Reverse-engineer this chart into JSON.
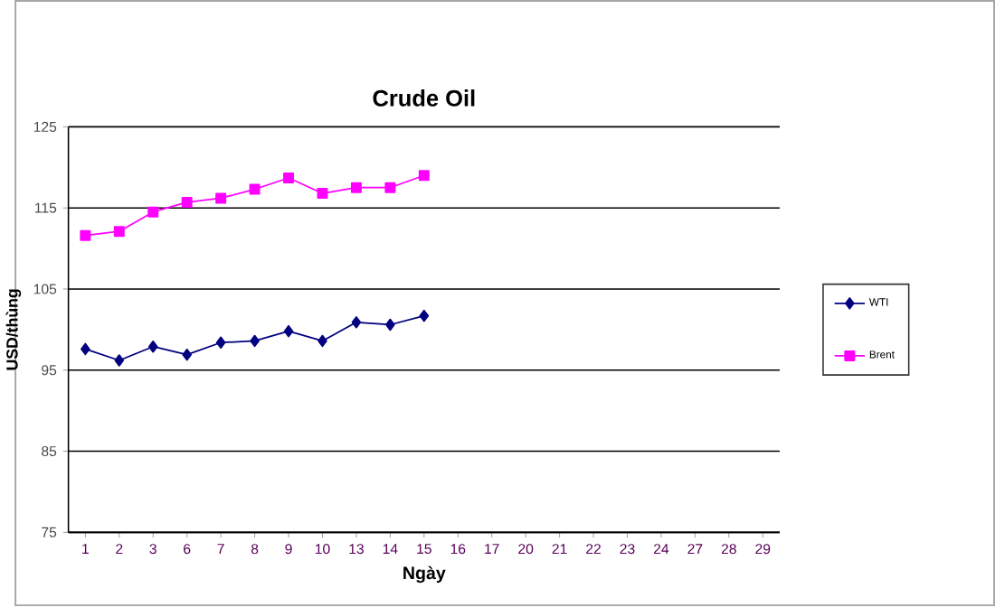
{
  "chart_data": {
    "type": "line",
    "title": "Crude Oil",
    "xlabel": "Ngày",
    "ylabel": "USD/thùng",
    "categories": [
      "1",
      "2",
      "3",
      "6",
      "7",
      "8",
      "9",
      "10",
      "13",
      "14",
      "15",
      "16",
      "17",
      "20",
      "21",
      "22",
      "23",
      "24",
      "27",
      "28",
      "29"
    ],
    "series": [
      {
        "name": "WTI",
        "color": "#000080",
        "marker": "diamond",
        "values": [
          97.6,
          96.2,
          97.9,
          96.9,
          98.4,
          98.6,
          99.8,
          98.6,
          100.9,
          100.6,
          101.7,
          null,
          null,
          null,
          null,
          null,
          null,
          null,
          null,
          null,
          null
        ]
      },
      {
        "name": "Brent",
        "color": "#ff00ff",
        "marker": "square",
        "values": [
          111.6,
          112.1,
          114.5,
          115.7,
          116.2,
          117.3,
          118.7,
          116.8,
          117.5,
          117.5,
          119.0,
          null,
          null,
          null,
          null,
          null,
          null,
          null,
          null,
          null,
          null
        ]
      }
    ],
    "ylim": [
      75,
      125
    ],
    "yticks": [
      75,
      85,
      95,
      105,
      115,
      125
    ],
    "grid": "y",
    "legend": "right"
  }
}
